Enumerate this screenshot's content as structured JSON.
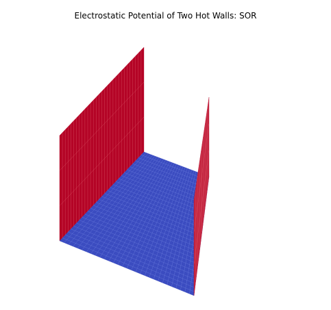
{
  "chart_data": {
    "type": "surface3d",
    "title": "Electrostatic Potential of Two Hot Walls: SOR",
    "xlabel": "",
    "ylabel": "",
    "zlabel": "",
    "axes_visible": false,
    "grid": false,
    "colormap": "coolwarm",
    "colors": {
      "low": "#3b4cc0",
      "high": "#b40426",
      "mesh_low": "#6f7fe0",
      "mesh_high": "#dd5a6a"
    },
    "grid_size": 30,
    "zlim": [
      0,
      1
    ],
    "boundary_conditions": {
      "hot_wall_value": 1,
      "interior_value": 0,
      "hot_walls": [
        "left",
        "right"
      ]
    }
  }
}
